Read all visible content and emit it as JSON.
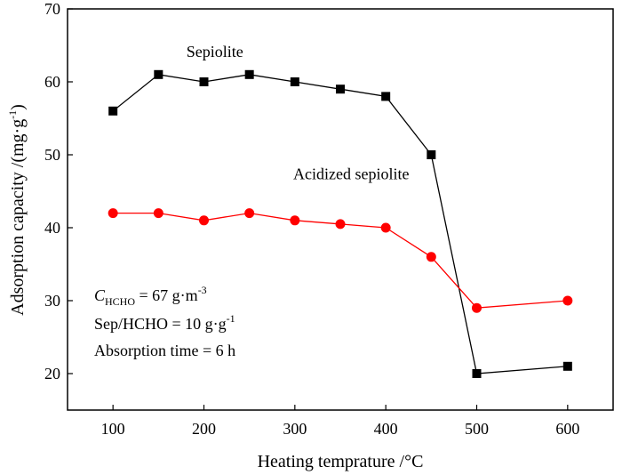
{
  "chart_data": {
    "type": "line",
    "title": "",
    "xlabel": "Heating temprature /°C",
    "ylabel": {
      "text": "Adsorption capacity /(mg·g",
      "sup": "-1",
      "close": ")"
    },
    "xlim": [
      50,
      650
    ],
    "ylim": [
      15,
      70
    ],
    "xticks": [
      100,
      200,
      300,
      400,
      500,
      600
    ],
    "yticks": [
      20,
      30,
      40,
      50,
      60,
      70
    ],
    "series": [
      {
        "name": "Sepiolite",
        "marker": "square",
        "color": "#000000",
        "x": [
          100,
          150,
          200,
          250,
          300,
          350,
          400,
          450,
          500,
          600
        ],
        "y": [
          56,
          61,
          60,
          61,
          60,
          59,
          58,
          50,
          20,
          21
        ]
      },
      {
        "name": "Acidized sepiolite",
        "marker": "circle",
        "color": "#ff0000",
        "x": [
          100,
          150,
          200,
          250,
          300,
          350,
          400,
          450,
          500,
          600
        ],
        "y": [
          42,
          42,
          41,
          42,
          41,
          40.5,
          40,
          36,
          29,
          30
        ]
      }
    ],
    "annotations": {
      "conc": {
        "var": "C",
        "sub": "HCHO",
        "rest": " = 67 g·m",
        "sup": "-3"
      },
      "ratio": {
        "text": "Sep/HCHO = 10 g·g",
        "sup": "-1"
      },
      "time": {
        "text": "Absorption time = 6 h"
      }
    }
  }
}
